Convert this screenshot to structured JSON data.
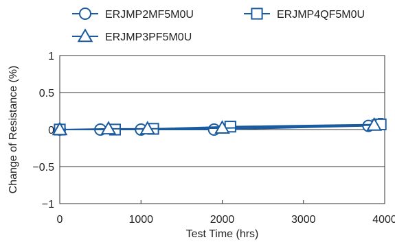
{
  "chart_data": {
    "type": "line",
    "xlabel": "Test Time (hrs)",
    "ylabel": "Change of Resistance (%)",
    "xlim": [
      0,
      4000
    ],
    "ylim": [
      -1,
      1
    ],
    "xticks": [
      0,
      1000,
      2000,
      3000,
      4000
    ],
    "xtick_labels": [
      "0",
      "1000",
      "2000",
      "3000",
      "4000"
    ],
    "yticks": [
      -1,
      -0.5,
      0,
      0.5,
      1
    ],
    "ytick_labels": [
      "−1",
      "−0.5",
      "0",
      "0.5",
      "1"
    ],
    "grid": "horizontal",
    "legend_position": "top",
    "series": [
      {
        "name": "ERJMP2MF5M0U",
        "marker": "circle",
        "x": [
          0,
          500,
          1000,
          1900,
          3800
        ],
        "y": [
          0.0,
          0.0,
          0.0,
          0.0,
          0.05
        ],
        "error": [
          0.02,
          0.02,
          0.02,
          0.03,
          0.06
        ]
      },
      {
        "name": "ERJMP4QF5M0U",
        "marker": "square",
        "x": [
          0,
          680,
          1150,
          2100,
          3950
        ],
        "y": [
          0.0,
          0.0,
          0.01,
          0.04,
          0.07
        ],
        "error": [
          0.02,
          0.02,
          0.02,
          0.05,
          0.08
        ]
      },
      {
        "name": "ERJMP3PF5M0U",
        "marker": "triangle",
        "x": [
          0,
          600,
          1080,
          2000,
          3870
        ],
        "y": [
          0.0,
          0.01,
          0.01,
          0.02,
          0.06
        ],
        "error": [
          0.02,
          0.02,
          0.02,
          0.04,
          0.07
        ]
      }
    ],
    "color": "#1a5a9e"
  }
}
